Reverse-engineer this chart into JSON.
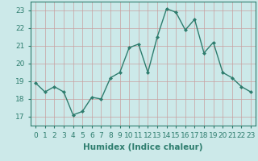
{
  "x": [
    0,
    1,
    2,
    3,
    4,
    5,
    6,
    7,
    8,
    9,
    10,
    11,
    12,
    13,
    14,
    15,
    16,
    17,
    18,
    19,
    20,
    21,
    22,
    23
  ],
  "y": [
    18.9,
    18.4,
    18.7,
    18.4,
    17.1,
    17.3,
    18.1,
    18.0,
    19.2,
    19.5,
    20.9,
    21.1,
    19.5,
    21.5,
    23.1,
    22.9,
    21.9,
    22.5,
    20.6,
    21.2,
    19.5,
    19.2,
    18.7,
    18.4
  ],
  "line_color": "#2e7d6e",
  "marker": "D",
  "marker_size": 2.0,
  "bg_color": "#cce9e9",
  "grid_color": "#c8a0a0",
  "xlabel": "Humidex (Indice chaleur)",
  "ylim": [
    16.5,
    23.5
  ],
  "xlim": [
    -0.5,
    23.5
  ],
  "yticks": [
    17,
    18,
    19,
    20,
    21,
    22,
    23
  ],
  "xticks": [
    0,
    1,
    2,
    3,
    4,
    5,
    6,
    7,
    8,
    9,
    10,
    11,
    12,
    13,
    14,
    15,
    16,
    17,
    18,
    19,
    20,
    21,
    22,
    23
  ],
  "xlabel_fontsize": 7.5,
  "tick_fontsize": 6.5,
  "line_width": 1.0,
  "spine_color": "#2e7d6e"
}
